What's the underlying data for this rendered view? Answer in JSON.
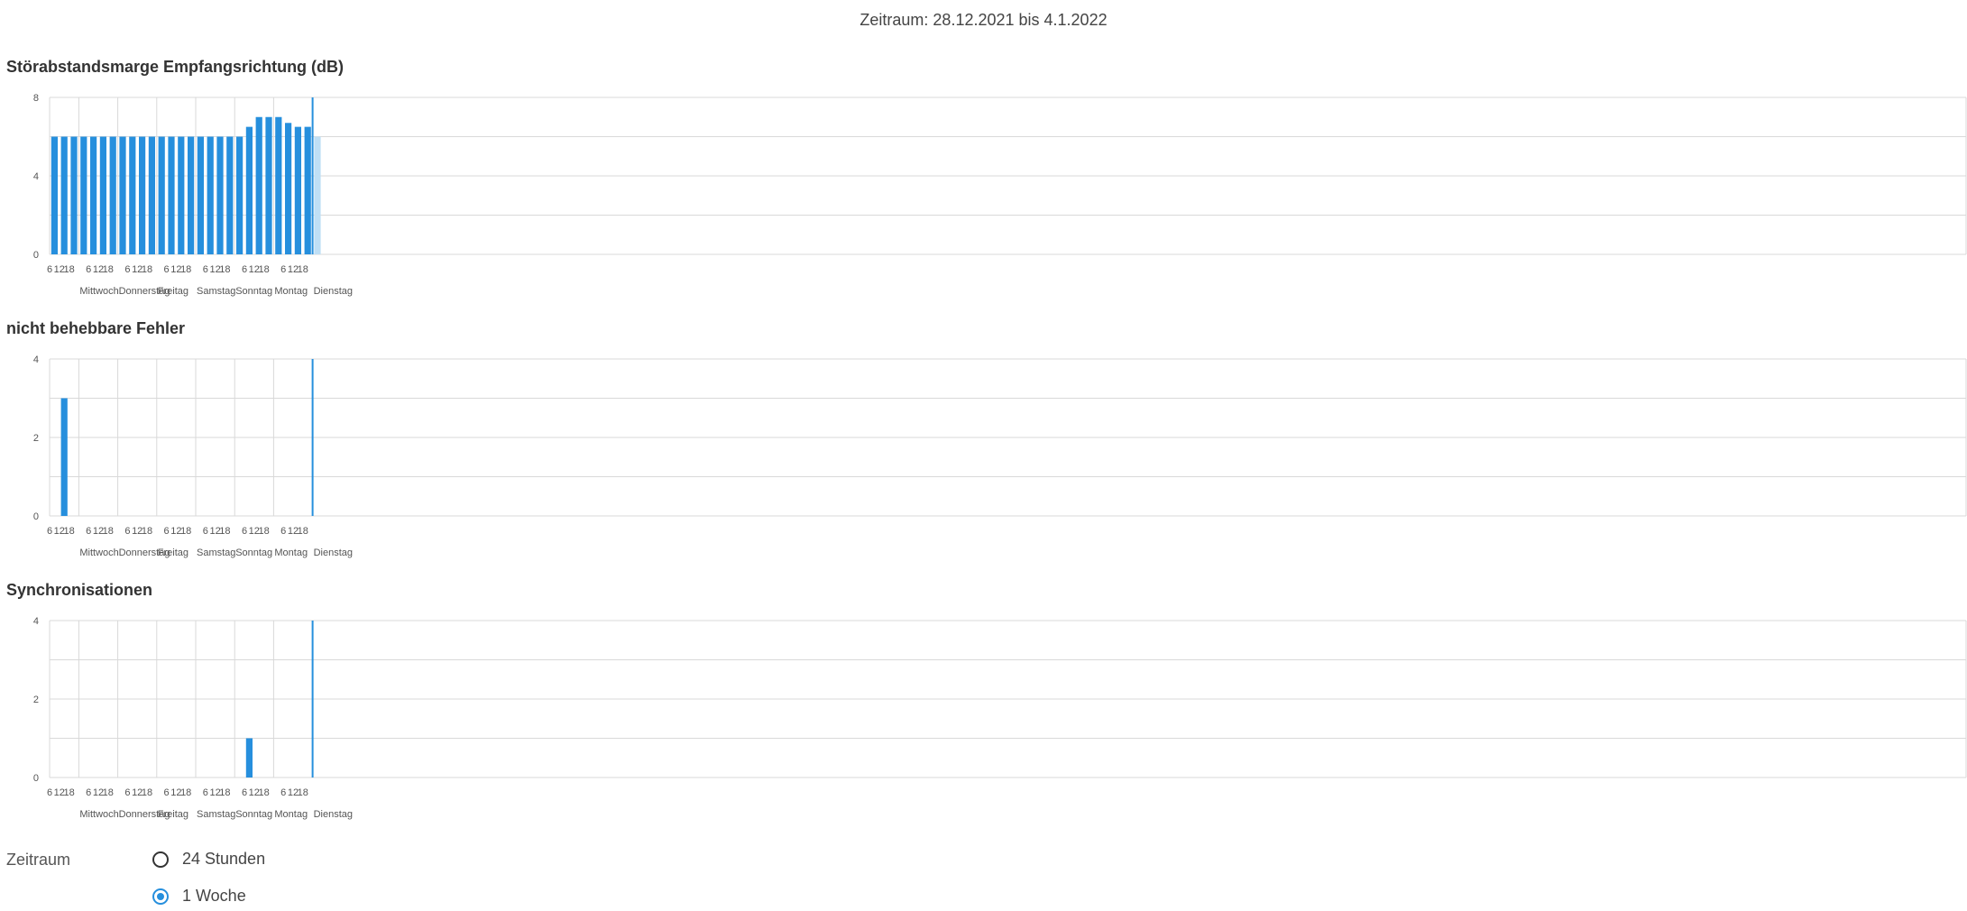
{
  "header": {
    "period_title": "Zeitraum: 28.12.2021 bis 4.1.2022"
  },
  "colors": {
    "bar": "#268fdd",
    "bar_pending": "#bfdff5",
    "grid": "#d9d9d9",
    "now_marker": "#268fdd"
  },
  "x_axis": {
    "hour_ticks": [
      "6",
      "12",
      "18"
    ],
    "day_labels": [
      "Mittwoch",
      "Donnerstag",
      "Freitag",
      "Samstag",
      "Sonntag",
      "Montag",
      "Dienstag"
    ]
  },
  "chart_data": [
    {
      "type": "bar",
      "title": "Störabstandsmarge Empfangsrichtung (dB)",
      "xlabel": "",
      "ylabel": "",
      "x_unit": "hours since 28.12.2021 06:00",
      "bar_width_hours": 4,
      "ylim": [
        0,
        8
      ],
      "yticks": [
        0,
        4,
        8
      ],
      "grid": true,
      "now_marker_hour": 162,
      "bars": [
        {
          "x": 1,
          "value": 6
        },
        {
          "x": 7,
          "value": 6
        },
        {
          "x": 13,
          "value": 6
        },
        {
          "x": 19,
          "value": 6
        },
        {
          "x": 25,
          "value": 6
        },
        {
          "x": 31,
          "value": 6
        },
        {
          "x": 37,
          "value": 6
        },
        {
          "x": 43,
          "value": 6
        },
        {
          "x": 49,
          "value": 6
        },
        {
          "x": 55,
          "value": 6
        },
        {
          "x": 61,
          "value": 6
        },
        {
          "x": 67,
          "value": 6
        },
        {
          "x": 73,
          "value": 6
        },
        {
          "x": 79,
          "value": 6
        },
        {
          "x": 85,
          "value": 6
        },
        {
          "x": 91,
          "value": 6
        },
        {
          "x": 97,
          "value": 6
        },
        {
          "x": 103,
          "value": 6
        },
        {
          "x": 109,
          "value": 6
        },
        {
          "x": 115,
          "value": 6
        },
        {
          "x": 121,
          "value": 6.5
        },
        {
          "x": 127,
          "value": 7
        },
        {
          "x": 133,
          "value": 7
        },
        {
          "x": 139,
          "value": 7
        },
        {
          "x": 145,
          "value": 6.7
        },
        {
          "x": 151,
          "value": 6.5
        },
        {
          "x": 157,
          "value": 6.5
        },
        {
          "x": 163,
          "value": 6,
          "pending": true
        }
      ]
    },
    {
      "type": "bar",
      "title": "nicht behebbare Fehler",
      "xlabel": "",
      "ylabel": "",
      "x_unit": "hours since 28.12.2021 06:00",
      "bar_width_hours": 4,
      "ylim": [
        0,
        4
      ],
      "yticks": [
        0,
        2,
        4
      ],
      "grid": true,
      "now_marker_hour": 162,
      "bars": [
        {
          "x": 7,
          "value": 3
        }
      ]
    },
    {
      "type": "bar",
      "title": "Synchronisationen",
      "xlabel": "",
      "ylabel": "",
      "x_unit": "hours since 28.12.2021 06:00",
      "bar_width_hours": 4,
      "ylim": [
        0,
        4
      ],
      "yticks": [
        0,
        2,
        4
      ],
      "grid": true,
      "now_marker_hour": 162,
      "bars": [
        {
          "x": 121,
          "value": 1
        }
      ]
    }
  ],
  "controls": {
    "label": "Zeitraum",
    "options": [
      {
        "label": "24 Stunden",
        "selected": false
      },
      {
        "label": "1 Woche",
        "selected": true
      }
    ]
  }
}
